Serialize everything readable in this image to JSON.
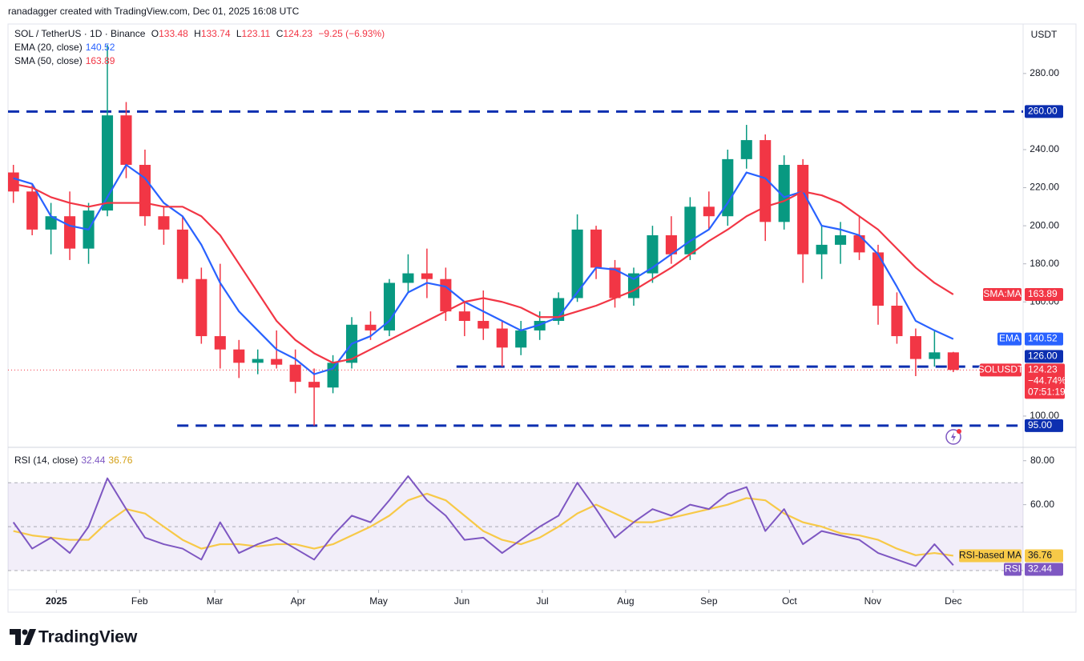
{
  "header": {
    "credit": "ranadagger created with TradingView.com, Dec 01, 2025 16:08 UTC",
    "symbol": "SOL / TetherUS · 1D · Binance",
    "ohlc": [
      {
        "label": "O",
        "value": 133.48
      },
      {
        "label": "H",
        "value": 133.74
      },
      {
        "label": "L",
        "value": 123.11
      },
      {
        "label": "C",
        "value": 124.23
      }
    ],
    "change": "−9.25 (−6.93%)"
  },
  "chart_data": [
    {
      "type": "candlestick",
      "currency": "USDT",
      "x": [
        -16,
        -9,
        -2,
        5,
        12,
        19,
        26,
        33,
        40,
        47,
        54,
        61,
        68,
        75,
        82,
        89,
        96,
        103,
        110,
        117,
        124,
        131,
        138,
        145,
        152,
        159,
        166,
        173,
        180,
        187,
        194,
        201,
        208,
        215,
        222,
        229,
        236,
        243,
        250,
        257,
        264,
        271,
        278,
        285,
        292,
        299,
        306,
        313,
        320,
        327,
        334
      ],
      "open": [
        228,
        218,
        198,
        205,
        188,
        208,
        258,
        232,
        205,
        198,
        172,
        142,
        135,
        128,
        130,
        127,
        118,
        115,
        128,
        148,
        145,
        170,
        175,
        172,
        155,
        150,
        146,
        136,
        145,
        150,
        162,
        198,
        178,
        162,
        175,
        195,
        185,
        210,
        205,
        235,
        245,
        202,
        232,
        185,
        190,
        195,
        186,
        158,
        142,
        130,
        133.48
      ],
      "high": [
        232,
        222,
        212,
        218,
        212,
        295,
        265,
        240,
        210,
        205,
        178,
        180,
        140,
        135,
        145,
        135,
        125,
        132,
        152,
        155,
        172,
        185,
        188,
        178,
        160,
        166,
        150,
        150,
        155,
        165,
        206,
        200,
        182,
        178,
        200,
        205,
        215,
        218,
        240,
        253,
        248,
        237,
        235,
        200,
        202,
        205,
        190,
        165,
        146,
        145,
        133.74
      ],
      "low": [
        212,
        195,
        185,
        182,
        180,
        205,
        225,
        200,
        190,
        170,
        138,
        125,
        120,
        122,
        125,
        112,
        95,
        112,
        125,
        140,
        142,
        165,
        162,
        150,
        142,
        140,
        126,
        132,
        140,
        148,
        160,
        172,
        157,
        158,
        170,
        180,
        182,
        198,
        200,
        230,
        192,
        198,
        170,
        172,
        180,
        182,
        148,
        138,
        121,
        126,
        123.11
      ],
      "close": [
        218,
        198,
        205,
        188,
        208,
        258,
        232,
        205,
        198,
        172,
        142,
        135,
        128,
        130,
        127,
        118,
        115,
        128,
        148,
        145,
        170,
        175,
        172,
        155,
        150,
        146,
        136,
        145,
        150,
        162,
        198,
        178,
        162,
        175,
        195,
        185,
        210,
        205,
        235,
        245,
        202,
        232,
        185,
        190,
        195,
        186,
        158,
        142,
        130,
        133.48,
        124.23
      ],
      "up_color": "#089981",
      "down_color": "#f23645",
      "series": [
        {
          "name": "EMA (20, close)",
          "tag": "EMA",
          "color": "#2962ff",
          "last": 140.52,
          "values": [
            225,
            222,
            205,
            200,
            198,
            215,
            232,
            225,
            212,
            205,
            190,
            170,
            155,
            145,
            135,
            130,
            122,
            125,
            138,
            142,
            150,
            165,
            170,
            168,
            160,
            155,
            150,
            145,
            148,
            152,
            165,
            178,
            177,
            172,
            178,
            185,
            192,
            198,
            212,
            228,
            225,
            215,
            218,
            200,
            198,
            195,
            185,
            168,
            150,
            145,
            140.52
          ]
        },
        {
          "name": "SMA (50, close)",
          "tag": "SMA:MA",
          "color": "#f23645",
          "last": 163.89,
          "values": [
            222,
            220,
            215,
            212,
            210,
            212,
            212,
            212,
            210,
            210,
            205,
            195,
            180,
            165,
            150,
            140,
            133,
            128,
            130,
            135,
            140,
            145,
            150,
            155,
            160,
            162,
            160,
            157,
            152,
            152,
            155,
            158,
            162,
            166,
            172,
            178,
            185,
            192,
            198,
            205,
            210,
            213,
            218,
            216,
            212,
            205,
            198,
            188,
            178,
            170,
            163.89
          ]
        }
      ],
      "price_tag": {
        "label": "SOLUSDT",
        "value": 124.23,
        "change": "−44.74%",
        "countdown": "07:51:19",
        "color": "#f23645"
      },
      "levels": [
        {
          "value": 260,
          "label": "260.00",
          "start": -18
        },
        {
          "value": 126,
          "label": "126.00",
          "start": 149
        },
        {
          "value": 95,
          "label": "95.00",
          "start": 45
        }
      ],
      "level_color": "#0c2fb0",
      "xlim": [
        -18,
        360
      ],
      "xticks": [
        {
          "value": 0,
          "label": "2025"
        },
        {
          "value": 31,
          "label": "Feb"
        },
        {
          "value": 59,
          "label": "Mar"
        },
        {
          "value": 90,
          "label": "Apr"
        },
        {
          "value": 120,
          "label": "May"
        },
        {
          "value": 151,
          "label": "Jun"
        },
        {
          "value": 181,
          "label": "Jul"
        },
        {
          "value": 212,
          "label": "Aug"
        },
        {
          "value": 243,
          "label": "Sep"
        },
        {
          "value": 273,
          "label": "Oct"
        },
        {
          "value": 304,
          "label": "Nov"
        },
        {
          "value": 334,
          "label": "Dec"
        }
      ],
      "ylim": [
        84,
        306
      ],
      "yticks": [
        {
          "value": 280,
          "label": "280.00"
        },
        {
          "value": 240,
          "label": "240.00"
        },
        {
          "value": 220,
          "label": "220.00"
        },
        {
          "value": 200,
          "label": "200.00"
        },
        {
          "value": 180,
          "label": "180.00"
        },
        {
          "value": 160,
          "label": "160.00"
        },
        {
          "value": 100,
          "label": "100.00"
        }
      ]
    },
    {
      "type": "line",
      "title": "RSI (14, close)",
      "x": [
        -16,
        -9,
        -2,
        5,
        12,
        19,
        26,
        33,
        40,
        47,
        54,
        61,
        68,
        75,
        82,
        89,
        96,
        103,
        110,
        117,
        124,
        131,
        138,
        145,
        152,
        159,
        166,
        173,
        180,
        187,
        194,
        201,
        208,
        215,
        222,
        229,
        236,
        243,
        250,
        257,
        264,
        271,
        278,
        285,
        292,
        299,
        306,
        313,
        320,
        327,
        334
      ],
      "series": [
        {
          "name": "RSI",
          "color": "#7e57c2",
          "last": 32.44,
          "values": [
            52,
            40,
            45,
            38,
            50,
            72,
            58,
            45,
            42,
            40,
            35,
            52,
            38,
            42,
            45,
            40,
            35,
            46,
            55,
            52,
            62,
            73,
            62,
            55,
            44,
            45,
            38,
            44,
            50,
            55,
            70,
            58,
            45,
            52,
            58,
            55,
            60,
            58,
            65,
            68,
            48,
            58,
            42,
            48,
            46,
            44,
            38,
            35,
            32,
            42,
            32.44
          ]
        },
        {
          "name": "RSI-based MA",
          "color": "#f7c948",
          "last": 36.76,
          "values": [
            48,
            46,
            45,
            44,
            44,
            52,
            58,
            56,
            50,
            44,
            40,
            42,
            42,
            41,
            42,
            42,
            40,
            42,
            46,
            50,
            55,
            62,
            65,
            62,
            55,
            48,
            44,
            42,
            45,
            50,
            56,
            60,
            56,
            52,
            52,
            54,
            56,
            58,
            60,
            63,
            62,
            56,
            52,
            50,
            47,
            46,
            44,
            40,
            37,
            38,
            36.76
          ]
        }
      ],
      "band": [
        30,
        70
      ],
      "midline": 50,
      "band_color": "#7e57c2",
      "xlim": [
        -18,
        360
      ],
      "ylim": [
        22,
        85
      ],
      "yticks": [
        {
          "value": 80,
          "label": "80.00"
        },
        {
          "value": 60,
          "label": "60.00"
        }
      ]
    }
  ],
  "footer": {
    "logo": "TradingView"
  }
}
